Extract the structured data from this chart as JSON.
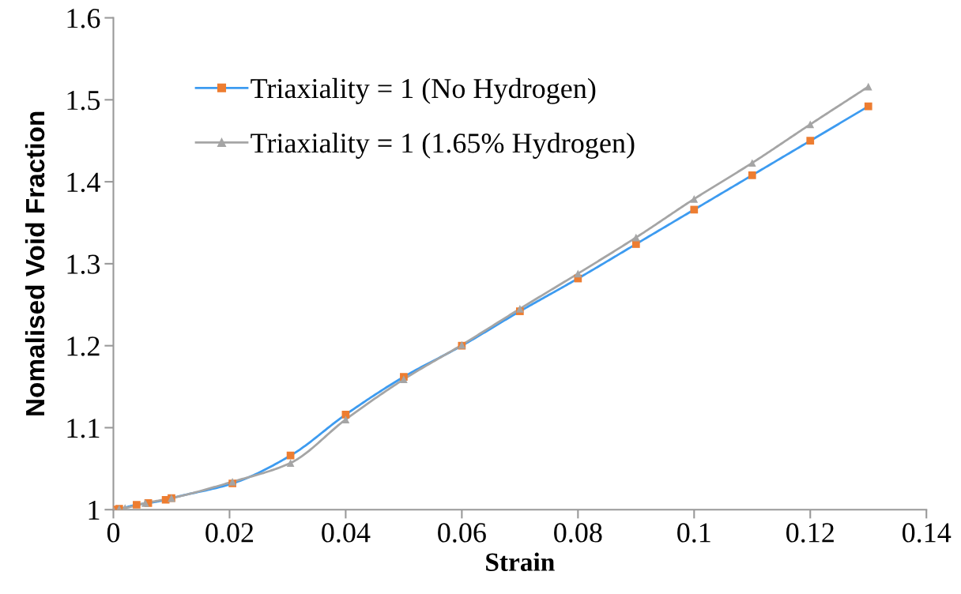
{
  "chart_data": {
    "type": "line",
    "xlabel": "Strain",
    "ylabel": "Nomalised Void Fraction",
    "xlim": [
      0,
      0.14
    ],
    "xticks": [
      0,
      0.02,
      0.04,
      0.06,
      0.08,
      0.1,
      0.12,
      0.14
    ],
    "ylim": [
      1,
      1.6
    ],
    "yticks": [
      1,
      1.1,
      1.2,
      1.3,
      1.4,
      1.5,
      1.6
    ],
    "grid": false,
    "legend": "top left",
    "line_style": "solid",
    "series": [
      {
        "name": "Triaxiality = 1 (No Hydrogen)",
        "color": "#3d9bf0",
        "colors": [
          "#ed7d31",
          "#ed7d31",
          "#ed7d31",
          "#ed7d31",
          "#ed7d31",
          "#ed7d31",
          "#ed7d31",
          "#ed7d31",
          "#ed7d31",
          "#ed7d31",
          "#ed7d31",
          "#ed7d31",
          "#ed7d31",
          "#ed7d31",
          "#ed7d31",
          "#ed7d31",
          "#ed7d31",
          "#ed7d31"
        ],
        "marker": "square",
        "x": [
          0,
          0.001,
          0.004,
          0.006,
          0.009,
          0.01,
          0.0205,
          0.0305,
          0.04,
          0.05,
          0.06,
          0.07,
          0.08,
          0.09,
          0.1,
          0.11,
          0.12,
          0.13
        ],
        "values": [
          1.0,
          1.001,
          1.006,
          1.008,
          1.012,
          1.014,
          1.032,
          1.066,
          1.116,
          1.162,
          1.2,
          1.242,
          1.282,
          1.324,
          1.366,
          1.408,
          1.45,
          1.492
        ]
      },
      {
        "name": "Triaxiality = 1 (1.65% Hydrogen)",
        "color": "#a5a5a5",
        "marker": "triangle",
        "x": [
          0,
          0.001,
          0.002,
          0.0055,
          0.01,
          0.0205,
          0.0305,
          0.04,
          0.05,
          0.06,
          0.07,
          0.08,
          0.09,
          0.1,
          0.11,
          0.12,
          0.13
        ],
        "values": [
          1.0,
          1.001,
          1.002,
          1.008,
          1.014,
          1.034,
          1.057,
          1.11,
          1.159,
          1.201,
          1.245,
          1.288,
          1.332,
          1.379,
          1.423,
          1.47,
          1.516
        ]
      }
    ]
  }
}
